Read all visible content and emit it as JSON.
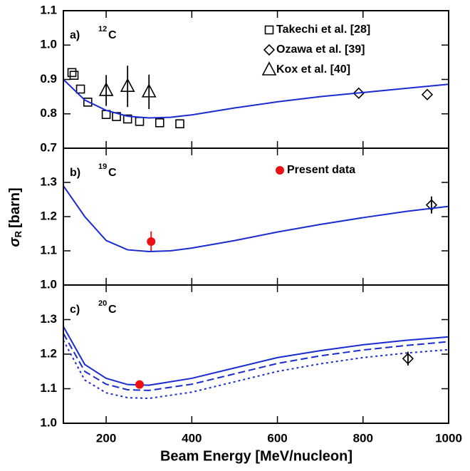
{
  "chart_data": [
    {
      "type": "line",
      "panel_label": "a)",
      "mass_number": "12",
      "element": "C",
      "xlim": [
        100,
        1000
      ],
      "xticks": [
        200,
        400,
        600,
        800,
        1000
      ],
      "ylim": [
        0.7,
        1.1
      ],
      "yticks": [
        0.7,
        0.8,
        0.9,
        {
          "value": 1,
          "label": "1.0"
        },
        1.1
      ],
      "series": [
        {
          "name": "Takechi et al. [28]",
          "kind": "scatter",
          "marker": "square",
          "color": "#000000",
          "x": [
            120,
            125,
            140,
            157,
            200,
            224,
            250,
            278,
            325,
            372
          ],
          "values": [
            0.92,
            0.912,
            0.872,
            0.834,
            0.798,
            0.792,
            0.785,
            0.778,
            0.774,
            0.771
          ]
        },
        {
          "name": "Ozawa et al. [39]",
          "kind": "scatter",
          "marker": "diamond",
          "color": "#000000",
          "x": [
            790,
            950
          ],
          "values": [
            0.86,
            0.856
          ]
        },
        {
          "name": "Kox et al. [40]",
          "kind": "scatter",
          "marker": "triangle",
          "color": "#000000",
          "x": [
            200,
            250,
            300
          ],
          "values": [
            0.868,
            0.88,
            0.864
          ],
          "errors": [
            0.045,
            0.06,
            0.05
          ]
        },
        {
          "kind": "line",
          "dash": "solid",
          "color": "#1a2bd0",
          "x": [
            100,
            150,
            200,
            250,
            300,
            350,
            400,
            500,
            600,
            700,
            800,
            900,
            1000
          ],
          "values": [
            0.9,
            0.84,
            0.81,
            0.793,
            0.788,
            0.79,
            0.797,
            0.817,
            0.835,
            0.85,
            0.862,
            0.874,
            0.886
          ]
        }
      ]
    },
    {
      "type": "line",
      "panel_label": "b)",
      "mass_number": "19",
      "element": "C",
      "xlim": [
        100,
        1000
      ],
      "xticks": [
        200,
        400,
        600,
        800,
        1000
      ],
      "ylim": [
        1.0,
        1.4
      ],
      "yticks": [
        {
          "value": 1,
          "label": "1.0"
        },
        1.1,
        1.2,
        1.3
      ],
      "series": [
        {
          "name": "Present data",
          "kind": "scatter",
          "marker": "circle",
          "color": "#ee1111",
          "x": [
            305
          ],
          "values": [
            1.127
          ],
          "errors": [
            0.03
          ]
        },
        {
          "kind": "scatter",
          "marker": "diamond",
          "color": "#000000",
          "x": [
            960
          ],
          "values": [
            1.234
          ],
          "errors": [
            0.025
          ]
        },
        {
          "kind": "line",
          "dash": "solid",
          "color": "#1a2bd0",
          "x": [
            100,
            150,
            200,
            250,
            300,
            350,
            400,
            500,
            600,
            700,
            800,
            900,
            1000
          ],
          "values": [
            1.29,
            1.2,
            1.13,
            1.103,
            1.098,
            1.1,
            1.108,
            1.13,
            1.155,
            1.177,
            1.197,
            1.215,
            1.23
          ]
        }
      ]
    },
    {
      "type": "line",
      "panel_label": "c)",
      "mass_number": "20",
      "element": "C",
      "xlim": [
        100,
        1000
      ],
      "xticks": [
        200,
        400,
        600,
        800,
        1000
      ],
      "ylim": [
        1.0,
        1.4
      ],
      "yticks": [
        {
          "value": 1,
          "label": "1.0"
        },
        1.1,
        1.2,
        1.3
      ],
      "series": [
        {
          "kind": "line",
          "dash": "solid",
          "color": "#1a2bd0",
          "x": [
            100,
            150,
            200,
            250,
            300,
            400,
            500,
            600,
            700,
            800,
            900,
            1000
          ],
          "values": [
            1.28,
            1.17,
            1.13,
            1.112,
            1.11,
            1.13,
            1.16,
            1.19,
            1.21,
            1.227,
            1.24,
            1.25
          ]
        },
        {
          "kind": "line",
          "dash": "dashed",
          "color": "#1a2bd0",
          "x": [
            100,
            150,
            200,
            250,
            300,
            400,
            500,
            600,
            700,
            800,
            900,
            1000
          ],
          "values": [
            1.26,
            1.15,
            1.113,
            1.097,
            1.095,
            1.113,
            1.143,
            1.173,
            1.195,
            1.212,
            1.225,
            1.236
          ]
        },
        {
          "kind": "line",
          "dash": "dotted",
          "color": "#1a2bd0",
          "x": [
            100,
            150,
            200,
            250,
            300,
            400,
            500,
            600,
            700,
            800,
            900,
            1000
          ],
          "values": [
            1.24,
            1.125,
            1.088,
            1.074,
            1.072,
            1.09,
            1.12,
            1.15,
            1.172,
            1.19,
            1.203,
            1.213
          ]
        },
        {
          "kind": "scatter",
          "marker": "circle",
          "color": "#ee1111",
          "x": [
            278
          ],
          "values": [
            1.112
          ]
        },
        {
          "kind": "scatter",
          "marker": "diamond",
          "color": "#000000",
          "x": [
            905
          ],
          "values": [
            1.187
          ],
          "errors": [
            0.02
          ]
        }
      ]
    }
  ],
  "axis_labels": {
    "x": "Beam Energy [MeV/nucleon]",
    "y_symbol": "σ",
    "y_subscript": "R",
    "y_unit": "[barn]"
  }
}
